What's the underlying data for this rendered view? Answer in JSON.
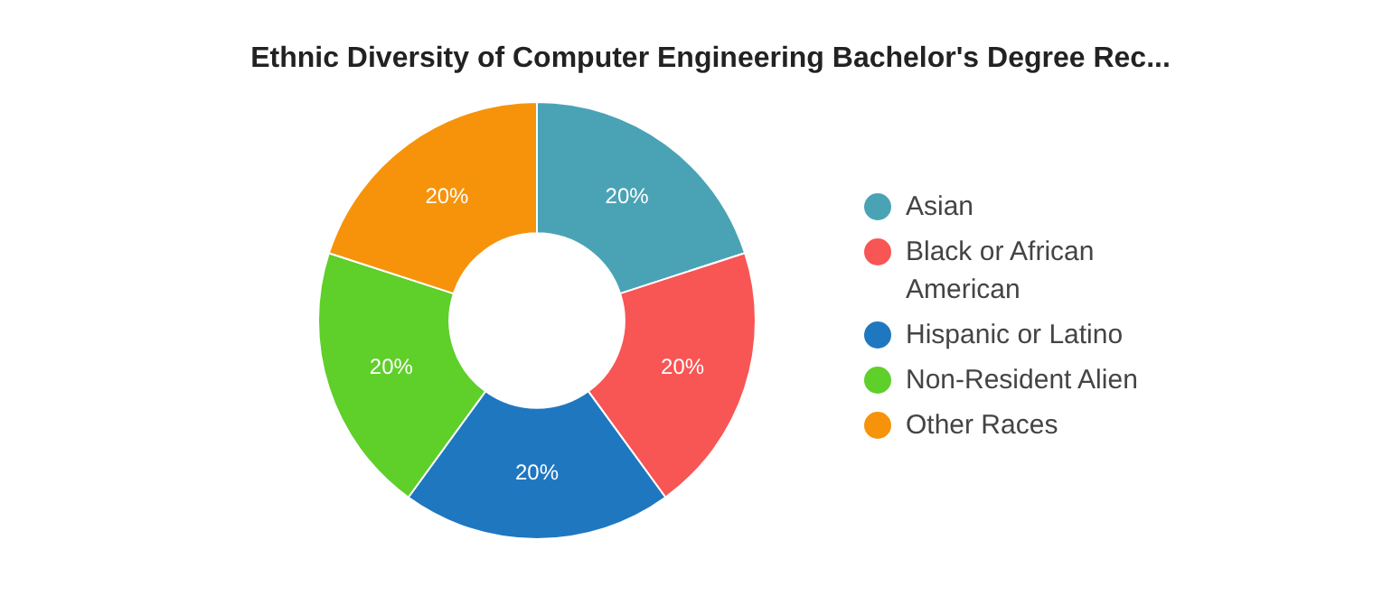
{
  "chart_data": {
    "type": "donut",
    "title": "Ethnic Diversity of Computer Engineering Bachelor's Degree Rec...",
    "categories": [
      "Asian",
      "Black or African American",
      "Hispanic or Latino",
      "Non-Resident Alien",
      "Other Races"
    ],
    "values": [
      20,
      20,
      20,
      20,
      20
    ],
    "colors": [
      "#4aa3b5",
      "#f85555",
      "#1f77c0",
      "#5fcf2a",
      "#f7930a"
    ],
    "value_labels": [
      "20%",
      "20%",
      "20%",
      "20%",
      "20%"
    ],
    "legend": "right"
  }
}
